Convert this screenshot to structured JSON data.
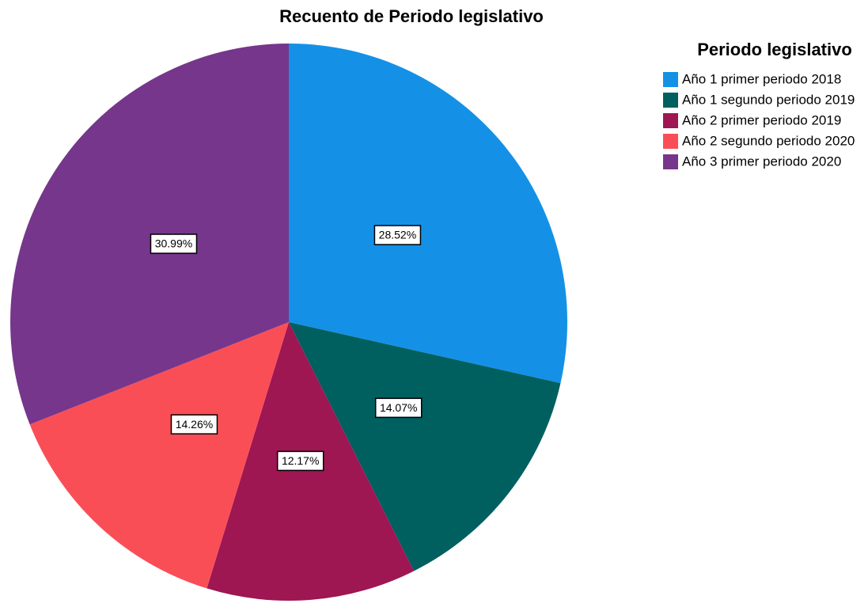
{
  "chart_data": {
    "type": "pie",
    "title": "Recuento de Periodo legislativo",
    "legend_title": "Periodo legislativo",
    "categories": [
      "Año 1 primer periodo 2018",
      "Año 1 segundo periodo 2019",
      "Año 2 primer periodo 2019",
      "Año 2 segundo periodo 2020",
      "Año 3 primer periodo 2020"
    ],
    "values": [
      28.52,
      14.07,
      12.17,
      14.26,
      30.99
    ],
    "value_labels": [
      "28.52%",
      "14.07%",
      "12.17%",
      "14.26%",
      "30.99%"
    ],
    "colors": [
      "#1491e6",
      "#005f5f",
      "#9e1652",
      "#fa4e56",
      "#76368b"
    ],
    "legend": "right"
  }
}
